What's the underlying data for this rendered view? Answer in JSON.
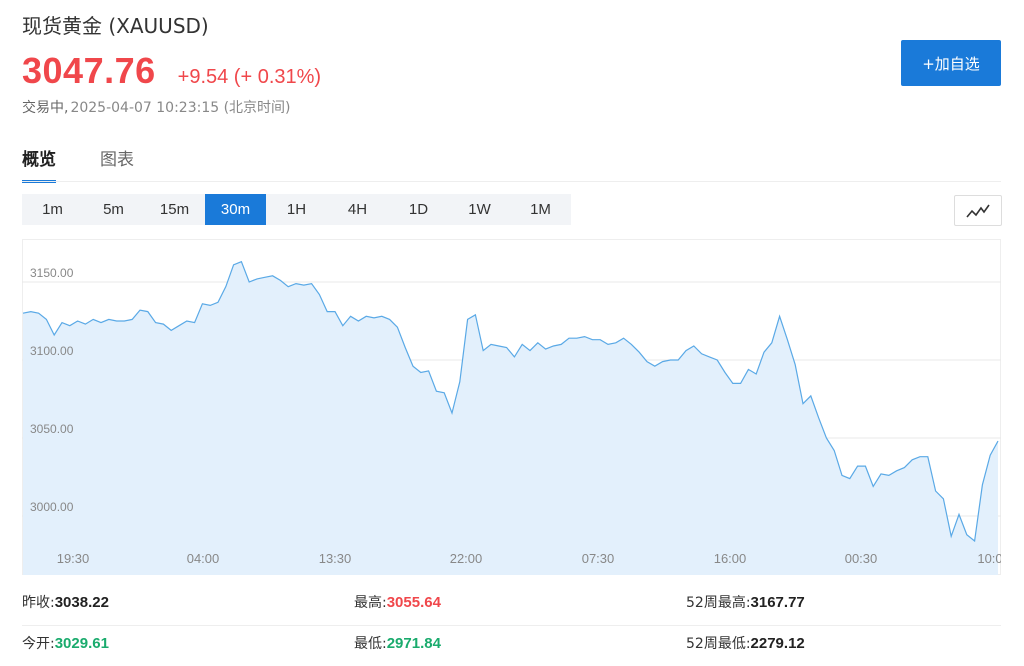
{
  "header": {
    "title": "现货黄金 (XAUUSD)",
    "price": "3047.76",
    "change": "+9.54 (+ 0.31%)",
    "status": "交易中,",
    "timestamp": "2025-04-07 10:23:15 (北京时间)",
    "add_button": "+加自选"
  },
  "tabs": [
    {
      "label": "概览",
      "active": true
    },
    {
      "label": "图表",
      "active": false
    }
  ],
  "intervals": [
    {
      "label": "1m"
    },
    {
      "label": "5m"
    },
    {
      "label": "15m"
    },
    {
      "label": "30m",
      "active": true
    },
    {
      "label": "1H"
    },
    {
      "label": "4H"
    },
    {
      "label": "1D"
    },
    {
      "label": "1W"
    },
    {
      "label": "1M"
    }
  ],
  "chart_toggle_icon": "line-chart-icon",
  "colors": {
    "up": "#f0474b",
    "down": "#1aab6d",
    "accent": "#1a7ad9",
    "line": "#5aa9e6",
    "fill": "#e3f0fc"
  },
  "chart_data": {
    "type": "area",
    "ylim": [
      2970,
      3170
    ],
    "yticks": [
      3000,
      3050,
      3100,
      3150
    ],
    "ytick_labels": [
      "3000.00",
      "3050.00",
      "3100.00",
      "3150.00"
    ],
    "xtick_labels": [
      "19:30",
      "04:00",
      "13:30",
      "22:00",
      "07:30",
      "16:00",
      "00:30",
      "10:0"
    ],
    "grid": true,
    "values": [
      3130,
      3131,
      3130,
      3126,
      3116,
      3124,
      3122,
      3125,
      3123,
      3126,
      3124,
      3126,
      3125,
      3125,
      3126,
      3132,
      3131,
      3124,
      3123,
      3119,
      3122,
      3125,
      3124,
      3136,
      3135,
      3137,
      3147,
      3161,
      3163,
      3150,
      3152,
      3153,
      3154,
      3151,
      3147,
      3149,
      3148,
      3149,
      3142,
      3131,
      3131,
      3122,
      3128,
      3125,
      3128,
      3127,
      3128,
      3126,
      3121,
      3108,
      3096,
      3092,
      3093,
      3080,
      3079,
      3066,
      3086,
      3126,
      3129,
      3106,
      3110,
      3109,
      3108,
      3102,
      3110,
      3106,
      3111,
      3107,
      3109,
      3110,
      3114,
      3114,
      3115,
      3113,
      3113,
      3110,
      3111,
      3114,
      3110,
      3105,
      3099,
      3096,
      3099,
      3100,
      3100,
      3106,
      3109,
      3104,
      3102,
      3100,
      3092,
      3085,
      3085,
      3094,
      3091,
      3105,
      3111,
      3128,
      3113,
      3097,
      3072,
      3077,
      3063,
      3050,
      3042,
      3026,
      3024,
      3032,
      3032,
      3019,
      3027,
      3026,
      3029,
      3031,
      3036,
      3038,
      3038,
      3016,
      3011,
      2987,
      3001,
      2988,
      2984,
      3020,
      3039,
      3048
    ]
  },
  "stats": {
    "prev_close_label": "昨收:",
    "prev_close": "3038.22",
    "high_label": "最高:",
    "high": "3055.64",
    "week52_high_label": "52周最高:",
    "week52_high": "3167.77",
    "open_label": "今开:",
    "open": "3029.61",
    "low_label": "最低:",
    "low": "2971.84",
    "week52_low_label": "52周最低:",
    "week52_low": "2279.12"
  }
}
